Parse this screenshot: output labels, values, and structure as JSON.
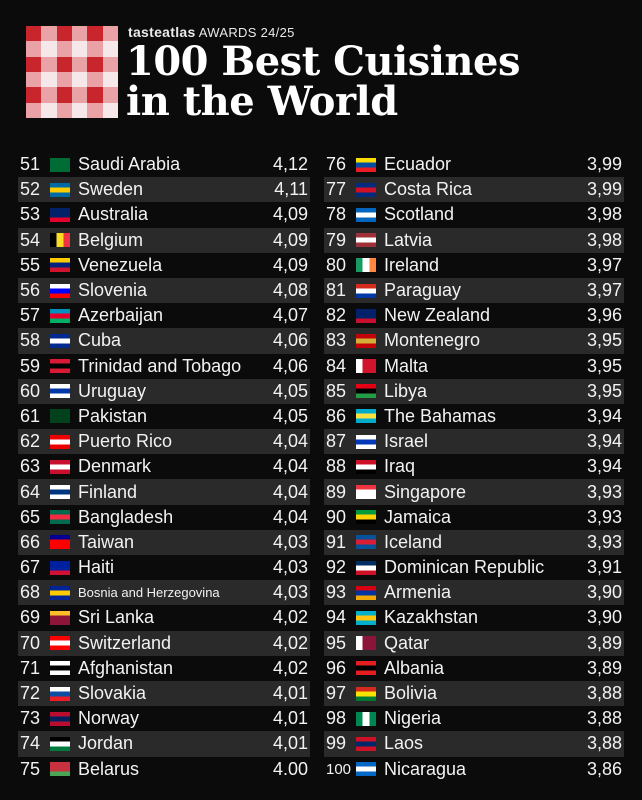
{
  "brand": {
    "name": "tasteatlas",
    "award": "AWARDS 24/25"
  },
  "title": {
    "line1": "100 Best Cuisines",
    "line2": "in the World"
  },
  "colors": {
    "logo_red": "#c8252c",
    "logo_pink": "#e9a3a6",
    "logo_white": "#f6e8e8",
    "row_alt": "#2a2a2a"
  },
  "left_column": [
    {
      "rank": "51",
      "name": "Saudi Arabia",
      "score": "4,12",
      "flag": [
        "#006c35",
        "#006c35",
        "#006c35"
      ]
    },
    {
      "rank": "52",
      "name": "Sweden",
      "score": "4,11",
      "flag": [
        "#006aa7",
        "#fecc00",
        "#006aa7"
      ]
    },
    {
      "rank": "53",
      "name": "Australia",
      "score": "4,09",
      "flag": [
        "#012169",
        "#012169",
        "#e4002b"
      ]
    },
    {
      "rank": "54",
      "name": "Belgium",
      "score": "4,09",
      "flag": [
        "#000000",
        "#fdda24",
        "#ef3340"
      ],
      "vertical": true
    },
    {
      "rank": "55",
      "name": "Venezuela",
      "score": "4,09",
      "flag": [
        "#ffcc00",
        "#00247d",
        "#cf142b"
      ]
    },
    {
      "rank": "56",
      "name": "Slovenia",
      "score": "4,08",
      "flag": [
        "#ffffff",
        "#0000ff",
        "#ff0000"
      ]
    },
    {
      "rank": "57",
      "name": "Azerbaijan",
      "score": "4,07",
      "flag": [
        "#0092bc",
        "#e4002b",
        "#00af66"
      ]
    },
    {
      "rank": "58",
      "name": "Cuba",
      "score": "4,06",
      "flag": [
        "#002a8f",
        "#ffffff",
        "#002a8f"
      ]
    },
    {
      "rank": "59",
      "name": "Trinidad and Tobago",
      "score": "4,06",
      "flag": [
        "#da1a35",
        "#000000",
        "#da1a35"
      ]
    },
    {
      "rank": "60",
      "name": "Uruguay",
      "score": "4,05",
      "flag": [
        "#ffffff",
        "#0038a8",
        "#ffffff"
      ]
    },
    {
      "rank": "61",
      "name": "Pakistan",
      "score": "4,05",
      "flag": [
        "#01411c",
        "#01411c",
        "#01411c"
      ]
    },
    {
      "rank": "62",
      "name": "Puerto Rico",
      "score": "4,04",
      "flag": [
        "#ed0000",
        "#ffffff",
        "#ed0000"
      ]
    },
    {
      "rank": "63",
      "name": "Denmark",
      "score": "4,04",
      "flag": [
        "#c8102e",
        "#ffffff",
        "#c8102e"
      ]
    },
    {
      "rank": "64",
      "name": "Finland",
      "score": "4,04",
      "flag": [
        "#ffffff",
        "#003580",
        "#ffffff"
      ]
    },
    {
      "rank": "65",
      "name": "Bangladesh",
      "score": "4,04",
      "flag": [
        "#006a4e",
        "#f42a41",
        "#006a4e"
      ]
    },
    {
      "rank": "66",
      "name": "Taiwan",
      "score": "4,03",
      "flag": [
        "#000095",
        "#fe0000",
        "#fe0000"
      ]
    },
    {
      "rank": "67",
      "name": "Haiti",
      "score": "4,03",
      "flag": [
        "#00209f",
        "#00209f",
        "#d21034"
      ]
    },
    {
      "rank": "68",
      "name": "Bosnia and Herzegovina",
      "score": "4,03",
      "flag": [
        "#002395",
        "#fecb00",
        "#002395"
      ]
    },
    {
      "rank": "69",
      "name": "Sri Lanka",
      "score": "4,02",
      "flag": [
        "#ffbe29",
        "#8d153a",
        "#8d153a"
      ]
    },
    {
      "rank": "70",
      "name": "Switzerland",
      "score": "4,02",
      "flag": [
        "#ff0000",
        "#ffffff",
        "#ff0000"
      ]
    },
    {
      "rank": "71",
      "name": "Afghanistan",
      "score": "4,02",
      "flag": [
        "#ffffff",
        "#000000",
        "#ffffff"
      ]
    },
    {
      "rank": "72",
      "name": "Slovakia",
      "score": "4,01",
      "flag": [
        "#ffffff",
        "#0b4ea2",
        "#ee1c25"
      ]
    },
    {
      "rank": "73",
      "name": "Norway",
      "score": "4,01",
      "flag": [
        "#ba0c2f",
        "#00205b",
        "#ba0c2f"
      ]
    },
    {
      "rank": "74",
      "name": "Jordan",
      "score": "4,01",
      "flag": [
        "#000000",
        "#ffffff",
        "#007a3d"
      ]
    },
    {
      "rank": "75",
      "name": "Belarus",
      "score": "4.00",
      "flag": [
        "#c8313e",
        "#c8313e",
        "#4aa657"
      ]
    }
  ],
  "right_column": [
    {
      "rank": "76",
      "name": "Ecuador",
      "score": "3,99",
      "flag": [
        "#ffdd00",
        "#034ea2",
        "#ed1c24"
      ]
    },
    {
      "rank": "77",
      "name": "Costa Rica",
      "score": "3,99",
      "flag": [
        "#002b7f",
        "#ce1126",
        "#002b7f"
      ]
    },
    {
      "rank": "78",
      "name": "Scotland",
      "score": "3,98",
      "flag": [
        "#0065bd",
        "#ffffff",
        "#0065bd"
      ]
    },
    {
      "rank": "79",
      "name": "Latvia",
      "score": "3,98",
      "flag": [
        "#9e3039",
        "#ffffff",
        "#9e3039"
      ]
    },
    {
      "rank": "80",
      "name": "Ireland",
      "score": "3,97",
      "flag": [
        "#169b62",
        "#ffffff",
        "#ff883e"
      ],
      "vertical": true
    },
    {
      "rank": "81",
      "name": "Paraguay",
      "score": "3,97",
      "flag": [
        "#d52b1e",
        "#ffffff",
        "#0038a8"
      ]
    },
    {
      "rank": "82",
      "name": "New Zealand",
      "score": "3,96",
      "flag": [
        "#012169",
        "#012169",
        "#c8102e"
      ]
    },
    {
      "rank": "83",
      "name": "Montenegro",
      "score": "3,95",
      "flag": [
        "#c40308",
        "#d4af37",
        "#c40308"
      ]
    },
    {
      "rank": "84",
      "name": "Malta",
      "score": "3,95",
      "flag": [
        "#ffffff",
        "#cf142b",
        "#cf142b"
      ],
      "vertical": true
    },
    {
      "rank": "85",
      "name": "Libya",
      "score": "3,95",
      "flag": [
        "#e70013",
        "#000000",
        "#239e46"
      ]
    },
    {
      "rank": "86",
      "name": "The Bahamas",
      "score": "3,94",
      "flag": [
        "#00abc9",
        "#fae042",
        "#00abc9"
      ]
    },
    {
      "rank": "87",
      "name": "Israel",
      "score": "3,94",
      "flag": [
        "#ffffff",
        "#0038b8",
        "#ffffff"
      ]
    },
    {
      "rank": "88",
      "name": "Iraq",
      "score": "3,94",
      "flag": [
        "#ce1126",
        "#ffffff",
        "#000000"
      ]
    },
    {
      "rank": "89",
      "name": "Singapore",
      "score": "3,93",
      "flag": [
        "#ef3340",
        "#ffffff",
        "#ffffff"
      ]
    },
    {
      "rank": "90",
      "name": "Jamaica",
      "score": "3,93",
      "flag": [
        "#009b3a",
        "#fed100",
        "#000000"
      ]
    },
    {
      "rank": "91",
      "name": "Iceland",
      "score": "3,93",
      "flag": [
        "#02529c",
        "#dc1e35",
        "#02529c"
      ]
    },
    {
      "rank": "92",
      "name": "Dominican Republic",
      "score": "3,91",
      "flag": [
        "#002d62",
        "#ffffff",
        "#ce1126"
      ]
    },
    {
      "rank": "93",
      "name": "Armenia",
      "score": "3,90",
      "flag": [
        "#d90012",
        "#0033a0",
        "#f2a800"
      ]
    },
    {
      "rank": "94",
      "name": "Kazakhstan",
      "score": "3,90",
      "flag": [
        "#00afca",
        "#fec50c",
        "#00afca"
      ]
    },
    {
      "rank": "95",
      "name": "Qatar",
      "score": "3,89",
      "flag": [
        "#ffffff",
        "#8a1538",
        "#8a1538"
      ],
      "vertical": true
    },
    {
      "rank": "96",
      "name": "Albania",
      "score": "3,89",
      "flag": [
        "#e41e20",
        "#000000",
        "#e41e20"
      ]
    },
    {
      "rank": "97",
      "name": "Bolivia",
      "score": "3,88",
      "flag": [
        "#d52b1e",
        "#f9e300",
        "#007934"
      ]
    },
    {
      "rank": "98",
      "name": "Nigeria",
      "score": "3,88",
      "flag": [
        "#008751",
        "#ffffff",
        "#008751"
      ],
      "vertical": true
    },
    {
      "rank": "99",
      "name": "Laos",
      "score": "3,88",
      "flag": [
        "#ce1126",
        "#002868",
        "#ce1126"
      ]
    },
    {
      "rank": "100",
      "name": "Nicaragua",
      "score": "3,86",
      "flag": [
        "#0067c6",
        "#ffffff",
        "#0067c6"
      ]
    }
  ]
}
